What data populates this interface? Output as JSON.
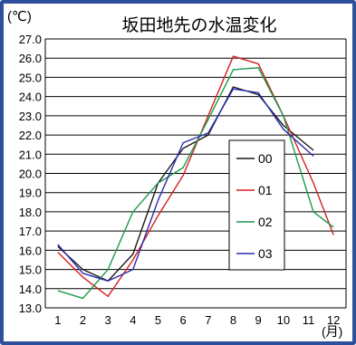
{
  "chart_data": {
    "type": "line",
    "title": "坂田地先の水温変化",
    "ylabel": "(℃)",
    "xlabel": "(月)",
    "ylim": [
      13.0,
      27.0
    ],
    "y_ticks": [
      "27.0",
      "26.0",
      "25.0",
      "24.0",
      "23.0",
      "22.0",
      "21.0",
      "20.0",
      "19.0",
      "18.0",
      "17.0",
      "16.0",
      "15.0",
      "14.0",
      "13.0"
    ],
    "x_ticks": [
      "1",
      "2",
      "3",
      "4",
      "5",
      "6",
      "7",
      "8",
      "9",
      "10",
      "11",
      "12"
    ],
    "xlim": [
      0.5,
      12.5
    ],
    "grid": "horizontal",
    "legend_position": "right-center",
    "series": [
      {
        "name": "00",
        "color": "#1a1a1a",
        "x": [
          1,
          2,
          3,
          4,
          5,
          6,
          7,
          8,
          9,
          10,
          11.2
        ],
        "y": [
          16.2,
          15.0,
          14.4,
          15.8,
          19.5,
          21.3,
          22.0,
          24.5,
          24.1,
          22.5,
          21.2
        ]
      },
      {
        "name": "01",
        "color": "#d42020",
        "x": [
          1,
          2,
          3,
          4,
          5,
          6,
          7,
          8,
          9,
          10,
          11.2,
          12
        ],
        "y": [
          15.9,
          14.6,
          13.6,
          15.5,
          17.8,
          19.9,
          23.0,
          26.1,
          25.7,
          23.0,
          19.5,
          16.8
        ]
      },
      {
        "name": "02",
        "color": "#1a9a4a",
        "x": [
          1,
          2,
          3,
          4,
          5,
          6,
          7,
          8,
          9,
          10,
          11.2,
          12
        ],
        "y": [
          13.9,
          13.5,
          15.0,
          18.0,
          19.5,
          20.3,
          22.8,
          25.4,
          25.5,
          23.0,
          18.0,
          17.2
        ]
      },
      {
        "name": "03",
        "color": "#2a2ab0",
        "x": [
          1,
          2,
          3,
          4,
          5,
          6,
          7,
          8,
          9,
          10,
          11.2
        ],
        "y": [
          16.3,
          14.8,
          14.4,
          15.0,
          18.6,
          21.6,
          22.1,
          24.4,
          24.2,
          22.3,
          20.9
        ]
      }
    ]
  }
}
